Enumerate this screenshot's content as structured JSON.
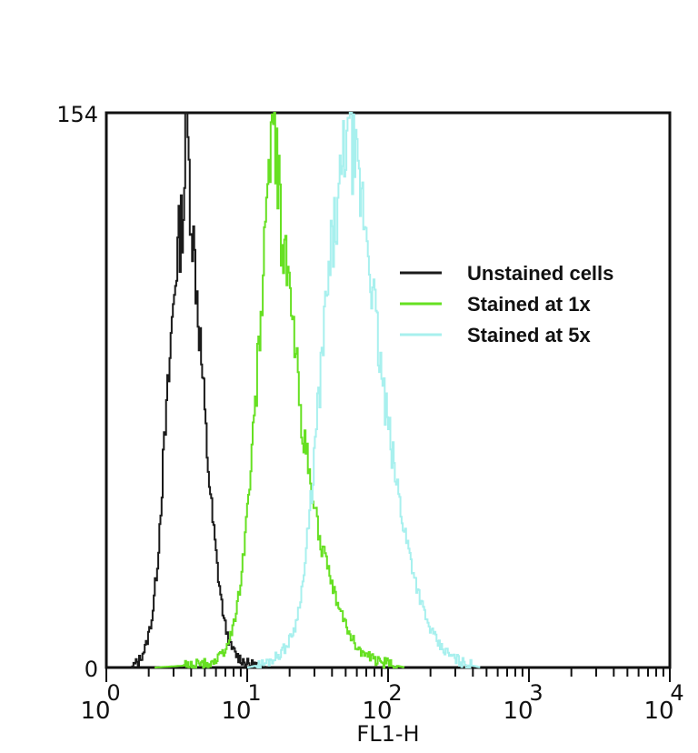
{
  "chart_data": {
    "type": "line",
    "title": "",
    "xlabel": "FL1-H",
    "ylabel": "",
    "x_scale": "log",
    "xlim": [
      1,
      10000
    ],
    "ylim": [
      0,
      154
    ],
    "y_ticks": [
      {
        "value": 0,
        "label": "0"
      },
      {
        "value": 154,
        "label": "154"
      }
    ],
    "x_ticks": [
      {
        "value": 1,
        "base": "10",
        "exp": "0"
      },
      {
        "value": 10,
        "base": "10",
        "exp": "1"
      },
      {
        "value": 100,
        "base": "10",
        "exp": "2"
      },
      {
        "value": 1000,
        "base": "10",
        "exp": "3"
      },
      {
        "value": 10000,
        "base": "10",
        "exp": "4"
      }
    ],
    "grid": false,
    "legend_position": "right",
    "series": [
      {
        "name": "Unstained cells",
        "color": "#1a1a1a",
        "points": [
          [
            1.5,
            0
          ],
          [
            1.7,
            2
          ],
          [
            1.9,
            6
          ],
          [
            2.1,
            14
          ],
          [
            2.3,
            30
          ],
          [
            2.5,
            55
          ],
          [
            2.7,
            75
          ],
          [
            2.9,
            95
          ],
          [
            3.1,
            112
          ],
          [
            3.3,
            120
          ],
          [
            3.5,
            128
          ],
          [
            3.6,
            140
          ],
          [
            3.7,
            154
          ],
          [
            3.8,
            140
          ],
          [
            4.0,
            125
          ],
          [
            4.3,
            108
          ],
          [
            4.7,
            85
          ],
          [
            5.1,
            62
          ],
          [
            5.6,
            42
          ],
          [
            6.2,
            25
          ],
          [
            6.8,
            13
          ],
          [
            7.5,
            6
          ],
          [
            8.5,
            3
          ],
          [
            10,
            1
          ],
          [
            12,
            0.5
          ],
          [
            14,
            0
          ]
        ]
      },
      {
        "name": "Stained at 1x",
        "color": "#66e022",
        "points": [
          [
            2.2,
            0
          ],
          [
            3.5,
            0.5
          ],
          [
            5,
            1
          ],
          [
            6,
            2
          ],
          [
            7,
            5
          ],
          [
            8,
            12
          ],
          [
            9,
            25
          ],
          [
            10,
            45
          ],
          [
            11,
            65
          ],
          [
            12,
            90
          ],
          [
            13,
            110
          ],
          [
            13.8,
            130
          ],
          [
            14.5,
            150
          ],
          [
            15,
            154
          ],
          [
            16,
            140
          ],
          [
            17.5,
            120
          ],
          [
            19,
            110
          ],
          [
            21,
            95
          ],
          [
            24,
            70
          ],
          [
            28,
            50
          ],
          [
            33,
            35
          ],
          [
            38,
            25
          ],
          [
            45,
            16
          ],
          [
            55,
            8
          ],
          [
            65,
            4
          ],
          [
            80,
            2
          ],
          [
            100,
            1
          ],
          [
            130,
            0
          ]
        ]
      },
      {
        "name": "Stained at 5x",
        "color": "#a8f0ee",
        "points": [
          [
            10,
            0
          ],
          [
            13,
            1
          ],
          [
            16,
            3
          ],
          [
            19,
            6
          ],
          [
            22,
            12
          ],
          [
            25,
            25
          ],
          [
            28,
            45
          ],
          [
            32,
            75
          ],
          [
            36,
            100
          ],
          [
            40,
            118
          ],
          [
            45,
            130
          ],
          [
            49,
            145
          ],
          [
            52,
            154
          ],
          [
            55,
            145
          ],
          [
            60,
            135
          ],
          [
            68,
            125
          ],
          [
            75,
            110
          ],
          [
            85,
            88
          ],
          [
            95,
            72
          ],
          [
            110,
            55
          ],
          [
            130,
            38
          ],
          [
            160,
            22
          ],
          [
            190,
            12
          ],
          [
            230,
            6
          ],
          [
            280,
            3
          ],
          [
            350,
            1
          ],
          [
            450,
            0
          ]
        ]
      }
    ]
  }
}
